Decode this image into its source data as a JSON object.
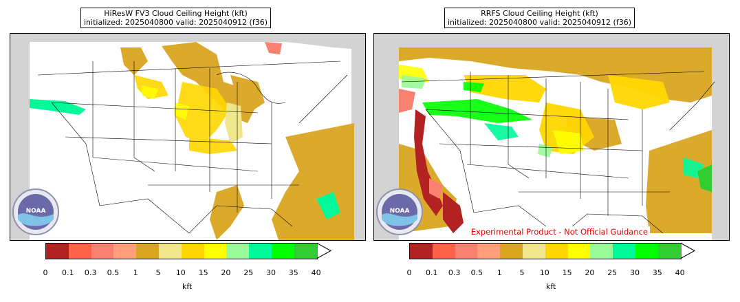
{
  "panels": [
    {
      "title_line1": "HiResW FV3 Cloud Ceiling Height (kft)",
      "title_line2": "initialized: 2025040800 valid: 2025040912 (f36)"
    },
    {
      "title_line1": "RRFS Cloud Ceiling Height (kft)",
      "title_line2": "initialized: 2025040800 valid: 2025040912 (f36)",
      "experimental_label": "Experimental Product - Not Official Guidance"
    }
  ],
  "logo_text": "NOAA",
  "colorbar": {
    "ticks": [
      "0",
      "0.1",
      "0.3",
      "0.5",
      "1",
      "5",
      "10",
      "15",
      "20",
      "25",
      "30",
      "35",
      "40"
    ],
    "colors": [
      "#b22222",
      "#ff6347",
      "#fa8072",
      "#ffa07a",
      "#daa520",
      "#f0e68c",
      "#ffd700",
      "#ffff00",
      "#98fb98",
      "#00fa9a",
      "#00ff00",
      "#32cd32"
    ],
    "units": "kft"
  }
}
